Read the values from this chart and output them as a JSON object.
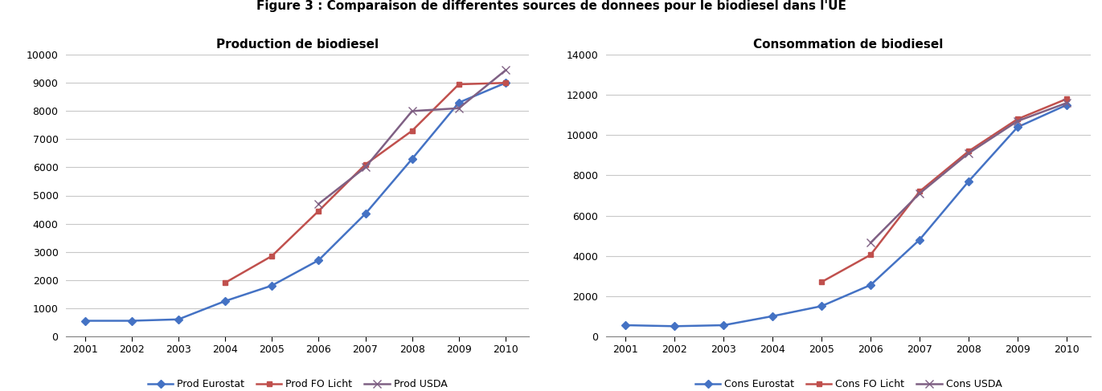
{
  "title": "Figure 3 : Comparaison de differentes sources de donnees pour le biodiesel dans l'UE",
  "years": [
    2001,
    2002,
    2003,
    2004,
    2005,
    2006,
    2007,
    2008,
    2009,
    2010
  ],
  "prod_eurostat": [
    550,
    550,
    600,
    1250,
    1800,
    2700,
    4350,
    6300,
    8300,
    9000
  ],
  "prod_fo_licht": [
    null,
    null,
    null,
    1900,
    2850,
    4450,
    6100,
    7300,
    8950,
    9000
  ],
  "prod_usda": [
    null,
    null,
    null,
    null,
    null,
    4700,
    6000,
    8000,
    8100,
    9450
  ],
  "cons_eurostat": [
    550,
    500,
    550,
    1000,
    1500,
    2550,
    4800,
    7700,
    10400,
    11500
  ],
  "cons_fo_licht": [
    null,
    null,
    null,
    null,
    2700,
    4050,
    7200,
    9200,
    10800,
    11800
  ],
  "cons_usda": [
    null,
    null,
    null,
    null,
    null,
    4650,
    7100,
    9100,
    10700,
    11600
  ],
  "prod_title": "Production de biodiesel",
  "cons_title": "Consommation de biodiesel",
  "prod_ylim": [
    0,
    10000
  ],
  "prod_yticks": [
    0,
    1000,
    2000,
    3000,
    4000,
    5000,
    6000,
    7000,
    8000,
    9000,
    10000
  ],
  "cons_ylim": [
    0,
    14000
  ],
  "cons_yticks": [
    0,
    2000,
    4000,
    6000,
    8000,
    10000,
    12000,
    14000
  ],
  "color_eurostat": "#4472C4",
  "color_fo_licht": "#C0504D",
  "color_usda": "#7F6084",
  "legend_prod": [
    "Prod Eurostat",
    "Prod FO Licht",
    "Prod USDA"
  ],
  "legend_cons": [
    "Cons Eurostat",
    "Cons FO Licht",
    "Cons USDA"
  ],
  "background_color": "#FFFFFF",
  "title_fontsize": 11,
  "subtitle_fontsize": 11,
  "legend_fontsize": 9,
  "tick_fontsize": 9,
  "marker_size": 5,
  "line_width": 1.8
}
